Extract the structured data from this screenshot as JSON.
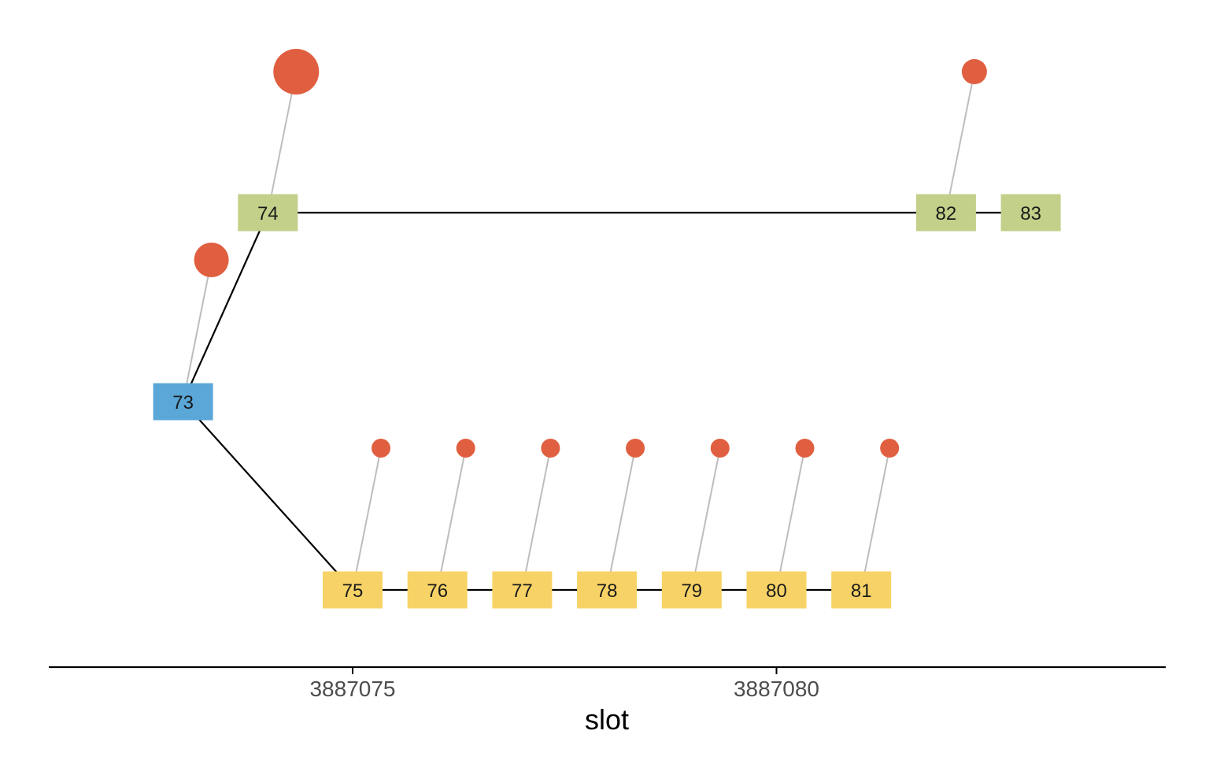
{
  "axis": {
    "title": "slot",
    "ticks": [
      {
        "value": 3887075,
        "label": "3887075"
      },
      {
        "value": 3887080,
        "label": "3887080"
      }
    ]
  },
  "colors": {
    "root": "#5aa7d8",
    "branch_a": "#c2d089",
    "branch_b": "#f7d367",
    "dot": "#e05f40",
    "edge": "#000000",
    "stem": "#bdbdbd",
    "axis": "#000000"
  },
  "nodes": [
    {
      "id": "73",
      "slot": 3887073,
      "group": "root"
    },
    {
      "id": "74",
      "slot": 3887074,
      "group": "branch_a"
    },
    {
      "id": "75",
      "slot": 3887075,
      "group": "branch_b"
    },
    {
      "id": "76",
      "slot": 3887076,
      "group": "branch_b"
    },
    {
      "id": "77",
      "slot": 3887077,
      "group": "branch_b"
    },
    {
      "id": "78",
      "slot": 3887078,
      "group": "branch_b"
    },
    {
      "id": "79",
      "slot": 3887079,
      "group": "branch_b"
    },
    {
      "id": "80",
      "slot": 3887080,
      "group": "branch_b"
    },
    {
      "id": "81",
      "slot": 3887081,
      "group": "branch_b"
    },
    {
      "id": "82",
      "slot": 3887082,
      "group": "branch_a"
    },
    {
      "id": "83",
      "slot": 3887083,
      "group": "branch_a"
    }
  ],
  "edges": [
    [
      "73",
      "74"
    ],
    [
      "74",
      "82"
    ],
    [
      "82",
      "83"
    ],
    [
      "73",
      "75"
    ],
    [
      "75",
      "76"
    ],
    [
      "76",
      "77"
    ],
    [
      "77",
      "78"
    ],
    [
      "78",
      "79"
    ],
    [
      "79",
      "80"
    ],
    [
      "80",
      "81"
    ]
  ],
  "dots": [
    {
      "node": "73",
      "size": "medium"
    },
    {
      "node": "74",
      "size": "large"
    },
    {
      "node": "75",
      "size": "small"
    },
    {
      "node": "76",
      "size": "small"
    },
    {
      "node": "77",
      "size": "small"
    },
    {
      "node": "78",
      "size": "small"
    },
    {
      "node": "79",
      "size": "small"
    },
    {
      "node": "80",
      "size": "small"
    },
    {
      "node": "81",
      "size": "small"
    },
    {
      "node": "82",
      "size": "small-medium"
    }
  ]
}
